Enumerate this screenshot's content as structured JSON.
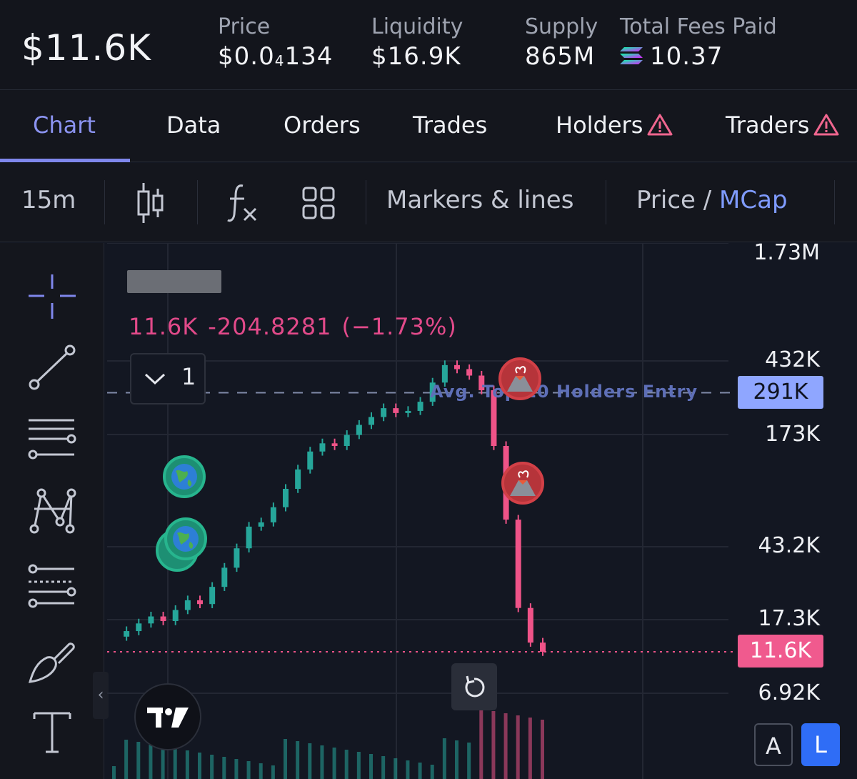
{
  "header": {
    "market_cap": "$11.6K",
    "price_label": "Price",
    "price_main": "$0.0",
    "price_sub": "4",
    "price_tail": "134",
    "liquidity_label": "Liquidity",
    "liquidity_value": "$16.9K",
    "supply_label": "Supply",
    "supply_value": "865M",
    "fees_label": "Total Fees Paid",
    "fees_value": "10.37",
    "fees_icon": "solana-icon"
  },
  "tabs": [
    {
      "label": "Chart",
      "active": true
    },
    {
      "label": "Data"
    },
    {
      "label": "Orders"
    },
    {
      "label": "Trades"
    },
    {
      "label": "Holders",
      "icon": "warning-icon"
    },
    {
      "label": "Traders",
      "icon": "warning-icon"
    }
  ],
  "toolbar": {
    "interval": "15m",
    "chart_type_icon": "candlestick-icon",
    "indicators_icon": "indicators-fx-icon",
    "layouts_icon": "layout-grid-icon",
    "markers": "Markers & lines",
    "price_label": "Price",
    "slash": " / ",
    "mcap_label": "MCap"
  },
  "tools": [
    "crosshair-icon",
    "trend-line-icon",
    "horizontal-lines-icon",
    "pattern-icon",
    "fib-icon",
    "brush-icon",
    "text-icon"
  ],
  "legend": {
    "value": "11.6K",
    "change": "-204.8281",
    "change_pct": "(−1.73%)",
    "collapsed_count": "1"
  },
  "colors": {
    "up": "#26a69a",
    "down": "#ef5388",
    "avg_entry": "#8fa6ff",
    "current": "#f05a8e",
    "background": "#131722"
  },
  "chart_data": {
    "type": "candlestick",
    "y_scale": "log",
    "y_ticks": [
      "1.73M",
      "432K",
      "173K",
      "43.2K",
      "17.3K",
      "6.92K"
    ],
    "ylim": [
      4000,
      1730000
    ],
    "annotations": {
      "avg_top10_holders_entry_label": "Avg. Top 10 Holders Entry",
      "avg_top10_holders_entry_value": "291K",
      "current_value_label": "11.6K",
      "current_value": 11600
    },
    "markers": [
      "globe",
      "globe",
      "globe",
      "volcano",
      "volcano"
    ],
    "close_series_approx": [
      14000,
      15000,
      16500,
      18000,
      17000,
      19500,
      22000,
      21000,
      26000,
      33000,
      42000,
      55000,
      58000,
      70000,
      88000,
      112000,
      140000,
      155000,
      150000,
      172000,
      195000,
      215000,
      240000,
      226000,
      232000,
      260000,
      330000,
      410000,
      390000,
      360000,
      300000,
      150000,
      60000,
      20000,
      13000,
      11600
    ]
  },
  "scale_buttons": {
    "auto": "A",
    "log": "L"
  }
}
